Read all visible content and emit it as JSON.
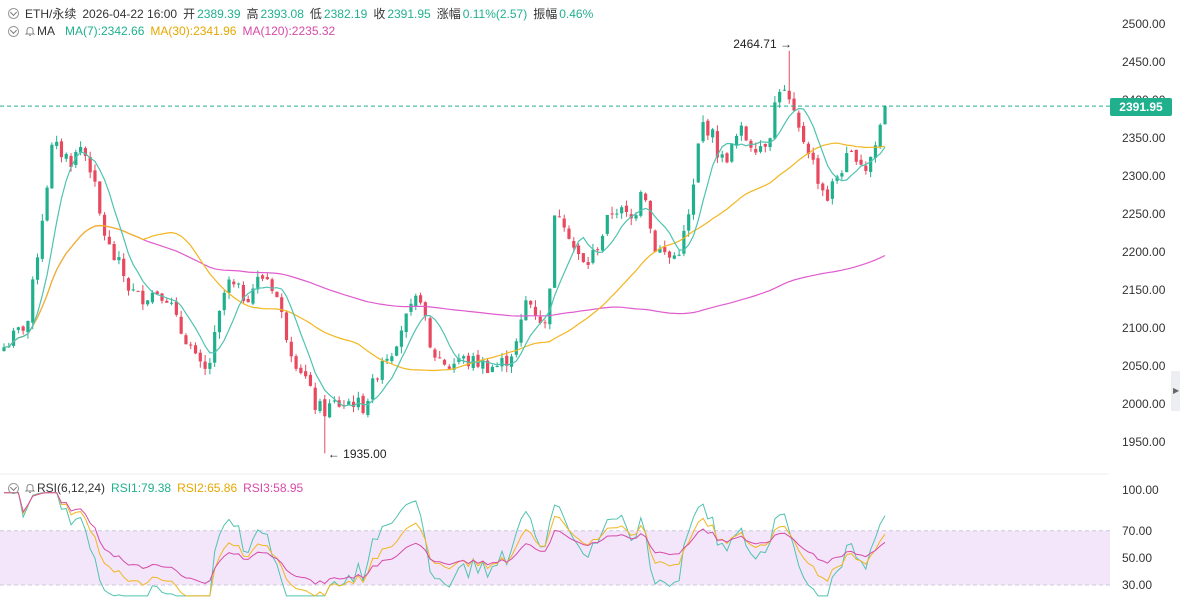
{
  "header": {
    "symbol": "ETH/永续",
    "datetime": "2026-04-22 16:00",
    "open_label": "开",
    "open_value": "2389.39",
    "high_label": "高",
    "high_value": "2393.08",
    "low_label": "低",
    "low_value": "2382.19",
    "close_label": "收",
    "close_value": "2391.95",
    "change_label": "涨幅",
    "change_value": "0.11%(2.57)",
    "amp_label": "振幅",
    "amp_value": "0.46%"
  },
  "ma_legend": {
    "name": "MA",
    "ma7": "MA(7):2342.66",
    "ma30": "MA(30):2341.96",
    "ma120": "MA(120):2235.32"
  },
  "rsi_legend": {
    "name": "RSI(6,12,24)",
    "rsi1": "RSI1:79.38",
    "rsi2": "RSI2:65.86",
    "rsi3": "RSI3:58.95"
  },
  "price_axis": [
    "2500.00",
    "2450.00",
    "2400.00",
    "2350.00",
    "2300.00",
    "2250.00",
    "2200.00",
    "2150.00",
    "2100.00",
    "2050.00",
    "2000.00",
    "1950.00"
  ],
  "rsi_axis": [
    "100.00",
    "70.00",
    "50.00",
    "30.00"
  ],
  "current_price": "2391.95",
  "annotations": {
    "high": "2464.71",
    "low": "1935.00"
  },
  "colors": {
    "up": "#21b08e",
    "down": "#e8495f",
    "ma7": "#4fc3b0",
    "ma30": "#f2b61f",
    "ma120": "#e05ccf",
    "rsi1": "#4fc3b0",
    "rsi2": "#f2b61f",
    "rsi3": "#d64aa8",
    "rsi_band": "#f3e6fb"
  },
  "chart_data": [
    {
      "type": "candlestick",
      "title": "",
      "ylim": [
        1935,
        2500
      ],
      "candle_count": 185,
      "close_path": [
        [
          0,
          2075
        ],
        [
          6,
          2095
        ],
        [
          10,
          2110
        ],
        [
          16,
          2250
        ],
        [
          20,
          2340
        ],
        [
          24,
          2330
        ],
        [
          28,
          2320
        ],
        [
          32,
          2340
        ],
        [
          36,
          2310
        ],
        [
          40,
          2240
        ],
        [
          44,
          2200
        ],
        [
          48,
          2180
        ],
        [
          52,
          2150
        ],
        [
          56,
          2140
        ],
        [
          60,
          2145
        ],
        [
          64,
          2150
        ],
        [
          68,
          2140
        ],
        [
          72,
          2100
        ],
        [
          76,
          2085
        ],
        [
          80,
          2050
        ],
        [
          84,
          2040
        ],
        [
          88,
          2100
        ],
        [
          92,
          2160
        ],
        [
          96,
          2150
        ],
        [
          100,
          2140
        ],
        [
          104,
          2160
        ],
        [
          108,
          2170
        ],
        [
          112,
          2150
        ],
        [
          116,
          2100
        ],
        [
          120,
          2060
        ],
        [
          124,
          2040
        ],
        [
          128,
          2000
        ],
        [
          132,
          1990
        ],
        [
          136,
          2000
        ],
        [
          140,
          2000
        ],
        [
          144,
          2005
        ],
        [
          148,
          1995
        ],
        [
          152,
          2020
        ],
        [
          156,
          2060
        ],
        [
          160,
          2070
        ],
        [
          164,
          2100
        ],
        [
          168,
          2120
        ],
        [
          172,
          2145
        ],
        [
          176,
          2070
        ],
        [
          180,
          2060
        ],
        [
          184,
          2050
        ],
        [
          188,
          2060
        ],
        [
          192,
          2055
        ],
        [
          196,
          2055
        ],
        [
          200,
          2050
        ],
        [
          204,
          2050
        ],
        [
          208,
          2060
        ],
        [
          212,
          2080
        ],
        [
          216,
          2140
        ],
        [
          220,
          2120
        ],
        [
          224,
          2100
        ],
        [
          228,
          2260
        ],
        [
          232,
          2240
        ],
        [
          236,
          2200
        ],
        [
          240,
          2180
        ],
        [
          244,
          2200
        ],
        [
          248,
          2230
        ],
        [
          252,
          2260
        ],
        [
          256,
          2250
        ],
        [
          260,
          2240
        ],
        [
          264,
          2300
        ],
        [
          268,
          2210
        ],
        [
          272,
          2200
        ],
        [
          276,
          2190
        ],
        [
          280,
          2210
        ],
        [
          284,
          2260
        ],
        [
          288,
          2370
        ],
        [
          292,
          2360
        ],
        [
          296,
          2320
        ],
        [
          300,
          2330
        ],
        [
          304,
          2360
        ],
        [
          308,
          2345
        ],
        [
          312,
          2340
        ],
        [
          316,
          2350
        ],
        [
          320,
          2420
        ],
        [
          324,
          2400
        ],
        [
          328,
          2360
        ],
        [
          332,
          2340
        ],
        [
          336,
          2300
        ],
        [
          340,
          2270
        ],
        [
          344,
          2300
        ],
        [
          348,
          2320
        ],
        [
          352,
          2330
        ],
        [
          356,
          2310
        ],
        [
          360,
          2340
        ],
        [
          364,
          2391.95
        ]
      ],
      "high": 2464.71,
      "low": 1935.0,
      "last_close": 2391.95,
      "series": [
        {
          "name": "MA(7)",
          "last": 2342.66
        },
        {
          "name": "MA(30)",
          "last": 2341.96
        },
        {
          "name": "MA(120)",
          "last": 2235.32
        }
      ]
    },
    {
      "type": "line",
      "title": "",
      "ylim": [
        20,
        105
      ],
      "band": [
        30,
        70
      ],
      "series": [
        {
          "name": "RSI1",
          "last": 79.38
        },
        {
          "name": "RSI2",
          "last": 65.86
        },
        {
          "name": "RSI3",
          "last": 58.95
        }
      ]
    }
  ]
}
